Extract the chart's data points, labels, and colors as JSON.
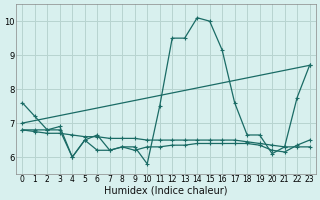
{
  "xlabel": "Humidex (Indice chaleur)",
  "xlim": [
    -0.5,
    23.5
  ],
  "ylim": [
    5.5,
    10.5
  ],
  "xticks": [
    0,
    1,
    2,
    3,
    4,
    5,
    6,
    7,
    8,
    9,
    10,
    11,
    12,
    13,
    14,
    15,
    16,
    17,
    18,
    19,
    20,
    21,
    22,
    23
  ],
  "yticks": [
    6,
    7,
    8,
    9,
    10
  ],
  "bg_color": "#d8f0ee",
  "grid_color": "#b8d4d0",
  "line_color": "#1a6b65",
  "lines": [
    {
      "x": [
        0,
        1,
        2,
        3,
        4,
        5,
        6,
        7,
        8,
        9,
        10,
        11,
        12,
        13,
        14,
        15,
        16,
        17,
        18,
        19,
        20,
        21,
        22,
        23
      ],
      "y": [
        7.6,
        7.2,
        6.8,
        6.9,
        6.0,
        6.5,
        6.2,
        6.2,
        6.3,
        6.3,
        5.8,
        7.5,
        9.5,
        9.5,
        10.1,
        10.0,
        9.15,
        7.6,
        6.65,
        6.65,
        6.1,
        6.3,
        7.75,
        8.7
      ]
    },
    {
      "x": [
        0,
        23
      ],
      "y": [
        7.0,
        8.7
      ]
    },
    {
      "x": [
        0,
        1,
        2,
        3,
        4,
        5,
        6,
        7,
        8,
        9,
        10,
        11,
        12,
        13,
        14,
        15,
        16,
        17,
        18,
        19,
        20,
        21,
        22,
        23
      ],
      "y": [
        6.8,
        6.75,
        6.7,
        6.7,
        6.65,
        6.6,
        6.6,
        6.55,
        6.55,
        6.55,
        6.5,
        6.5,
        6.5,
        6.5,
        6.5,
        6.5,
        6.5,
        6.5,
        6.45,
        6.4,
        6.35,
        6.3,
        6.3,
        6.3
      ]
    },
    {
      "x": [
        0,
        1,
        2,
        3,
        4,
        5,
        6,
        7,
        8,
        9,
        10,
        11,
        12,
        13,
        14,
        15,
        16,
        17,
        18,
        19,
        20,
        21,
        22,
        23
      ],
      "y": [
        6.8,
        6.8,
        6.8,
        6.8,
        6.0,
        6.5,
        6.65,
        6.2,
        6.3,
        6.2,
        6.3,
        6.3,
        6.35,
        6.35,
        6.4,
        6.4,
        6.4,
        6.4,
        6.4,
        6.35,
        6.2,
        6.15,
        6.35,
        6.5
      ]
    }
  ]
}
